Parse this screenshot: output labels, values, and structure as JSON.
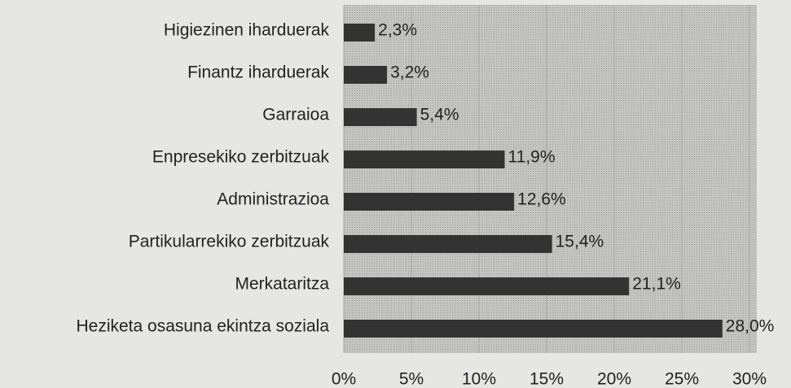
{
  "chart_data": {
    "type": "barh",
    "categories": [
      "Higiezinen iharduerak",
      "Finantz iharduerak",
      "Garraioa",
      "Enpresekiko zerbitzuak",
      "Administrazioa",
      "Partikularrekiko zerbitzuak",
      "Merkataritza",
      "Heziketa osasuna ekintza soziala"
    ],
    "values": [
      2.3,
      3.2,
      5.4,
      11.9,
      12.6,
      15.4,
      21.1,
      28.0
    ],
    "value_labels": [
      "2,3%",
      "3,2%",
      "5,4%",
      "11,9%",
      "12,6%",
      "15,4%",
      "21,1%",
      "28,0%"
    ],
    "color": "#333333",
    "xlim": [
      0,
      30
    ],
    "xticks": [
      {
        "value": 0,
        "label": "0%"
      },
      {
        "value": 5,
        "label": "5%"
      },
      {
        "value": 10,
        "label": "10%"
      },
      {
        "value": 15,
        "label": "15%"
      },
      {
        "value": 20,
        "label": "20%"
      },
      {
        "value": 25,
        "label": "25%"
      },
      {
        "value": 30,
        "label": "30%"
      }
    ],
    "grid": true
  }
}
